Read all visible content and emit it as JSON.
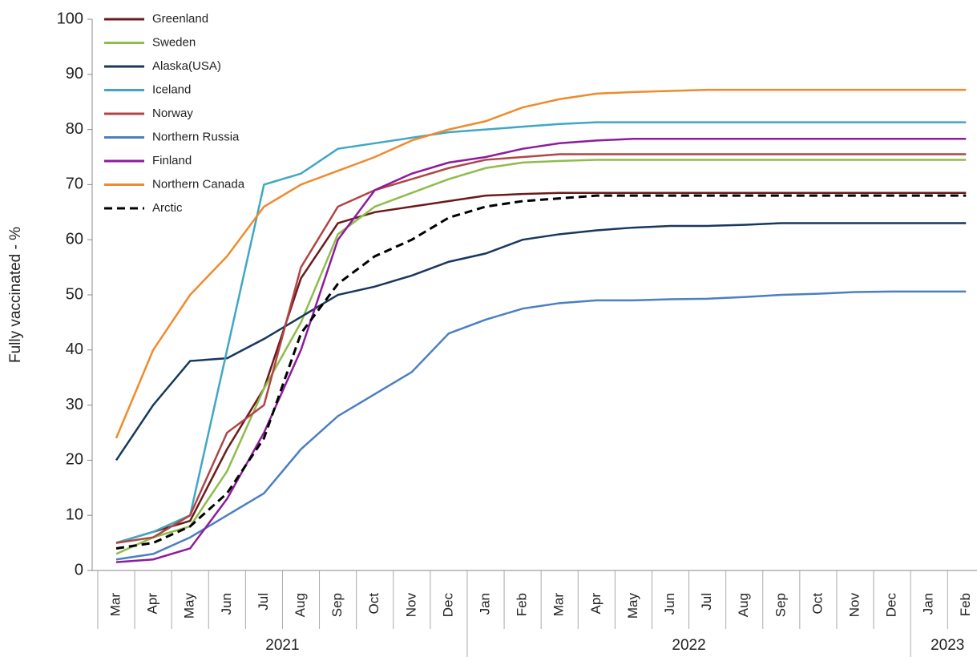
{
  "chart_data": {
    "type": "line",
    "y_label": "Fully vaccinated - %",
    "ylim": [
      0,
      100
    ],
    "yticks": [
      0,
      10,
      20,
      30,
      40,
      50,
      60,
      70,
      80,
      90,
      100
    ],
    "categories": [
      "Mar",
      "Apr",
      "May",
      "Jun",
      "Jul",
      "Aug",
      "Sep",
      "Oct",
      "Nov",
      "Dec",
      "Jan",
      "Feb",
      "Mar",
      "Apr",
      "May",
      "Jun",
      "Jul",
      "Aug",
      "Sep",
      "Oct",
      "Nov",
      "Dec",
      "Jan",
      "Feb"
    ],
    "years": [
      "2021",
      "2022",
      "2023"
    ],
    "legend": "upper left",
    "series": [
      {
        "name": "Greenland",
        "color": "#6b1a1a",
        "dash": false,
        "values": [
          5,
          7,
          9,
          22,
          33,
          53,
          63,
          65,
          66,
          67,
          68,
          68.3,
          68.5,
          68.5,
          68.5,
          68.5,
          68.5,
          68.5,
          68.5,
          68.5,
          68.5,
          68.5,
          68.5,
          68.5
        ]
      },
      {
        "name": "Sweden",
        "color": "#8fbc4c",
        "dash": false,
        "values": [
          3,
          6,
          8,
          18,
          33,
          45,
          61,
          66,
          68.5,
          71,
          73,
          74,
          74.3,
          74.5,
          74.5,
          74.5,
          74.5,
          74.5,
          74.5,
          74.5,
          74.5,
          74.5,
          74.5,
          74.5
        ]
      },
      {
        "name": "Alaska(USA)",
        "color": "#17375e",
        "dash": false,
        "values": [
          20,
          30,
          38,
          38.5,
          42,
          46,
          50,
          51.5,
          53.5,
          56,
          57.5,
          60,
          61,
          61.7,
          62.2,
          62.5,
          62.5,
          62.7,
          63,
          63,
          63,
          63,
          63,
          63
        ]
      },
      {
        "name": "Iceland",
        "color": "#3fa7c4",
        "dash": false,
        "values": [
          5,
          7,
          10,
          40,
          70,
          72,
          76.5,
          77.5,
          78.5,
          79.5,
          80,
          80.5,
          81,
          81.3,
          81.3,
          81.3,
          81.3,
          81.3,
          81.3,
          81.3,
          81.3,
          81.3,
          81.3,
          81.3
        ]
      },
      {
        "name": "Norway",
        "color": "#b04545",
        "dash": false,
        "values": [
          5,
          6,
          10,
          25,
          30,
          55,
          66,
          69,
          71,
          73,
          74.5,
          75,
          75.5,
          75.5,
          75.5,
          75.5,
          75.5,
          75.5,
          75.5,
          75.5,
          75.5,
          75.5,
          75.5,
          75.5
        ]
      },
      {
        "name": "Northern Russia",
        "color": "#4a7fc1",
        "dash": false,
        "values": [
          2,
          3,
          6,
          10,
          14,
          22,
          28,
          32,
          36,
          43,
          45.5,
          47.5,
          48.5,
          49,
          49,
          49.2,
          49.3,
          49.6,
          50,
          50.2,
          50.5,
          50.6,
          50.6,
          50.6
        ]
      },
      {
        "name": "Finland",
        "color": "#8e1a9e",
        "dash": false,
        "values": [
          1.5,
          2,
          4,
          13,
          25,
          40,
          60,
          69,
          72,
          74,
          75,
          76.5,
          77.5,
          78,
          78.3,
          78.3,
          78.3,
          78.3,
          78.3,
          78.3,
          78.3,
          78.3,
          78.3,
          78.3
        ]
      },
      {
        "name": "Northern Canada",
        "color": "#f08a2c",
        "dash": false,
        "values": [
          24,
          40,
          50,
          57,
          66,
          70,
          72.5,
          75,
          78,
          80,
          81.5,
          84,
          85.5,
          86.5,
          86.8,
          87,
          87.2,
          87.2,
          87.2,
          87.2,
          87.2,
          87.2,
          87.2,
          87.2
        ]
      },
      {
        "name": "Arctic",
        "color": "#000000",
        "dash": true,
        "values": [
          4,
          5,
          8,
          14,
          24,
          43,
          52,
          57,
          60,
          64,
          66,
          67,
          67.5,
          68,
          68,
          68,
          68,
          68,
          68,
          68,
          68,
          68,
          68,
          68
        ]
      }
    ]
  }
}
